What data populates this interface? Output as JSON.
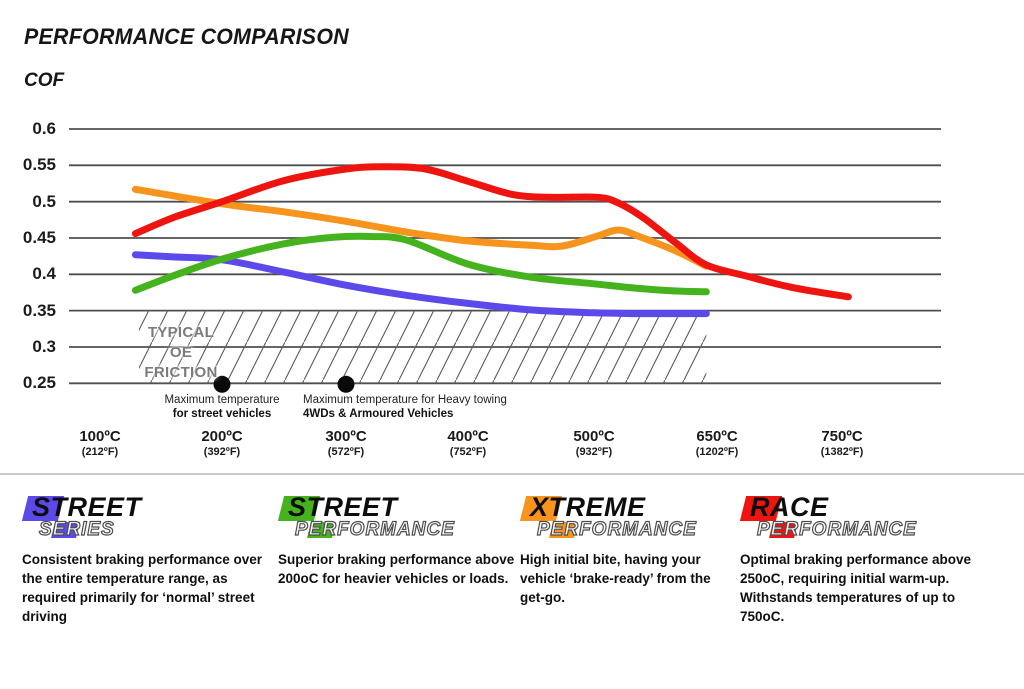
{
  "header": {
    "title": "PERFORMANCE COMPARISON",
    "axis_label": "COF"
  },
  "chart_data": {
    "type": "line",
    "title": "PERFORMANCE COMPARISON",
    "ylabel": "COF",
    "ylim": [
      0.25,
      0.6
    ],
    "grid": true,
    "y_ticks": [
      "0.6",
      "0.55",
      "0.5",
      "0.45",
      "0.4",
      "0.35",
      "0.3",
      "0.25"
    ],
    "y_tick_values": [
      0.6,
      0.55,
      0.5,
      0.45,
      0.4,
      0.35,
      0.3,
      0.25
    ],
    "x_ticks": [
      {
        "temp": 100,
        "label_c": "100ºC",
        "label_f": "(212ºF)"
      },
      {
        "temp": 200,
        "label_c": "200ºC",
        "label_f": "(392ºF)"
      },
      {
        "temp": 300,
        "label_c": "300ºC",
        "label_f": "(572ºF)"
      },
      {
        "temp": 400,
        "label_c": "400ºC",
        "label_f": "(752ºF)"
      },
      {
        "temp": 500,
        "label_c": "500ºC",
        "label_f": "(932ºF)"
      },
      {
        "temp": 650,
        "label_c": "650ºC",
        "label_f": "(1202ºF)"
      },
      {
        "temp": 750,
        "label_c": "750ºC",
        "label_f": "(1382ºF)"
      }
    ],
    "series": [
      {
        "name": "Street Series",
        "color": "#5b4ae9",
        "points": [
          [
            129,
            0.427
          ],
          [
            160,
            0.424
          ],
          [
            200,
            0.42
          ],
          [
            250,
            0.403
          ],
          [
            300,
            0.385
          ],
          [
            350,
            0.371
          ],
          [
            400,
            0.36
          ],
          [
            450,
            0.351
          ],
          [
            500,
            0.347
          ],
          [
            550,
            0.346
          ],
          [
            600,
            0.346
          ],
          [
            637,
            0.346
          ]
        ]
      },
      {
        "name": "Xtreme Performance",
        "color": "#f7941e",
        "points": [
          [
            129,
            0.517
          ],
          [
            200,
            0.497
          ],
          [
            250,
            0.486
          ],
          [
            300,
            0.473
          ],
          [
            350,
            0.458
          ],
          [
            400,
            0.446
          ],
          [
            450,
            0.44
          ],
          [
            475,
            0.439
          ],
          [
            505,
            0.453
          ],
          [
            530,
            0.461
          ],
          [
            555,
            0.452
          ],
          [
            600,
            0.432
          ],
          [
            637,
            0.411
          ]
        ]
      },
      {
        "name": "Street Performance",
        "color": "#45b31d",
        "points": [
          [
            129,
            0.378
          ],
          [
            160,
            0.398
          ],
          [
            200,
            0.421
          ],
          [
            250,
            0.442
          ],
          [
            290,
            0.451
          ],
          [
            320,
            0.452
          ],
          [
            350,
            0.447
          ],
          [
            400,
            0.414
          ],
          [
            450,
            0.396
          ],
          [
            500,
            0.387
          ],
          [
            550,
            0.381
          ],
          [
            600,
            0.377
          ],
          [
            637,
            0.376
          ]
        ]
      },
      {
        "name": "Race Performance",
        "color": "#ee1511",
        "points": [
          [
            129,
            0.456
          ],
          [
            160,
            0.478
          ],
          [
            200,
            0.5
          ],
          [
            250,
            0.529
          ],
          [
            300,
            0.545
          ],
          [
            330,
            0.548
          ],
          [
            365,
            0.545
          ],
          [
            400,
            0.528
          ],
          [
            435,
            0.51
          ],
          [
            465,
            0.506
          ],
          [
            505,
            0.506
          ],
          [
            530,
            0.498
          ],
          [
            560,
            0.478
          ],
          [
            600,
            0.443
          ],
          [
            637,
            0.413
          ],
          [
            675,
            0.397
          ],
          [
            710,
            0.382
          ],
          [
            755,
            0.369
          ]
        ]
      }
    ],
    "oe_band": {
      "label_line1": "TYPICAL OE",
      "label_line2": "FRICTION",
      "temp_start": 132,
      "temp_end": 637,
      "cof_bottom": 0.25,
      "cof_top": 0.35
    },
    "annotations": [
      {
        "temp": 200,
        "cof": 0.25,
        "line1": "Maximum temperature",
        "line2": "for street vehicles",
        "align": "center"
      },
      {
        "temp": 300,
        "cof": 0.25,
        "line1": "Maximum temperature for Heavy towing",
        "line2": "4WDs & Armoured Vehicles",
        "align": "left"
      }
    ]
  },
  "legend": {
    "items": [
      {
        "word1": "STREET",
        "word2": "SERIES",
        "color": "#5b4ae9",
        "description": "Consistent braking performance over the entire temperature range, as required primarily for ‘normal’ street driving"
      },
      {
        "word1": "STREET",
        "word2": "PERFORMANCE",
        "color": "#45b31d",
        "description": "Superior braking performance above 200oC for heavier vehicles or loads."
      },
      {
        "word1": "XTREME",
        "word2": "PERFORMANCE",
        "color": "#f7941e",
        "description": "High initial bite, having your vehicle ‘brake-ready’ from the get-go."
      },
      {
        "word1": "RACE",
        "word2": "PERFORMANCE",
        "color": "#ee1511",
        "description": "Optimal braking performance above 250oC, requiring initial warm-up. Withstands temperatures of up to 750oC."
      }
    ]
  }
}
